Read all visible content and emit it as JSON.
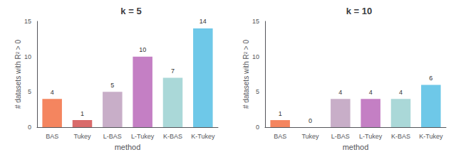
{
  "chart_data": [
    {
      "type": "bar",
      "title": "k = 5",
      "categories": [
        "BAS",
        "Tukey",
        "L-BAS",
        "L-Tukey",
        "K-BAS",
        "K-Tukey"
      ],
      "values": [
        4,
        1,
        5,
        10,
        7,
        14
      ],
      "colors": [
        "#f4855f",
        "#d96b6b",
        "#c8aec8",
        "#c47fc4",
        "#aad8d8",
        "#6ec8e8"
      ],
      "ylim": [
        0,
        15
      ],
      "yticks": [
        0,
        5,
        10,
        15
      ],
      "xlabel": "method",
      "ylabel": "# datasets with R² > 0",
      "data_labels": true,
      "grid": false
    },
    {
      "type": "bar",
      "title": "k = 10",
      "categories": [
        "BAS",
        "Tukey",
        "L-BAS",
        "L-Tukey",
        "K-BAS",
        "K-Tukey"
      ],
      "values": [
        1,
        0,
        4,
        4,
        4,
        6
      ],
      "colors": [
        "#f4855f",
        "#d96b6b",
        "#c8aec8",
        "#c47fc4",
        "#aad8d8",
        "#6ec8e8"
      ],
      "ylim": [
        0,
        15
      ],
      "yticks": [
        0,
        5,
        10,
        15
      ],
      "xlabel": "method",
      "ylabel": "# datasets with R² > 0",
      "data_labels": true,
      "grid": false
    }
  ]
}
